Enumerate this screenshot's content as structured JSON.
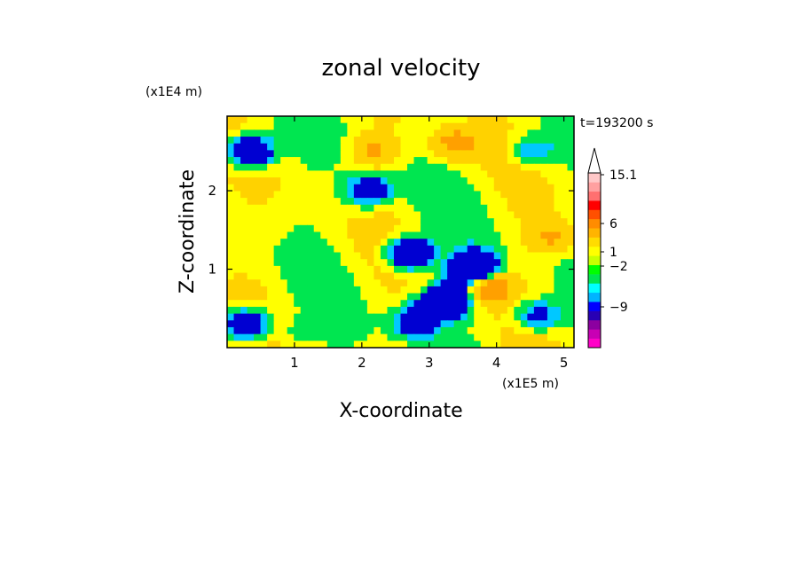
{
  "chart_data": {
    "type": "heatmap",
    "title": "zonal velocity",
    "xlabel": "X-coordinate",
    "ylabel": "Z-coordinate",
    "x_unit_label": "(x1E5 m)",
    "y_unit_label": "(x1E4 m)",
    "time_label": "t=193200 s",
    "xlim": [
      0,
      5.15
    ],
    "ylim": [
      0,
      2.95
    ],
    "x_ticks": [
      1,
      2,
      3,
      4,
      5
    ],
    "x_tick_labels": [
      "1",
      "2",
      "3",
      "4",
      "5"
    ],
    "y_ticks": [
      1,
      2
    ],
    "y_tick_labels": [
      "1",
      "2"
    ],
    "colorbar": {
      "labeled_levels": [
        15.1,
        6,
        1,
        -2,
        -9
      ],
      "labels": [
        "15.1",
        "6",
        "1",
        "−2",
        "−9"
      ],
      "extend": "max",
      "segment_colors": [
        "#ff00c8",
        "#c800b4",
        "#8c00a0",
        "#2800b4",
        "#0000ff",
        "#00b4ff",
        "#00ffff",
        "#00e650",
        "#00ff00",
        "#c8ff00",
        "#ffff00",
        "#ffdc00",
        "#ffb400",
        "#ff8c00",
        "#ff5000",
        "#ff0000",
        "#ff7070",
        "#ffa0a0",
        "#ffc8c8"
      ]
    },
    "field_levels": [
      -9,
      -2,
      -1,
      0,
      1,
      3,
      6
    ],
    "field_colors": [
      "#0000d2",
      "#00c8ff",
      "#00e650",
      "#ffff00",
      "#ffd200",
      "#ffa000",
      "#ff4600"
    ],
    "features": [
      {
        "x": 0.35,
        "z": 2.5,
        "value": -7
      },
      {
        "x": 2.1,
        "z": 2.0,
        "value": -5
      },
      {
        "x": 2.2,
        "z": 2.5,
        "value": 3
      },
      {
        "x": 1.0,
        "z": 0.2,
        "value": -1
      },
      {
        "x": 2.8,
        "z": 0.35,
        "value": -5
      },
      {
        "x": 3.25,
        "z": 0.6,
        "value": -8
      },
      {
        "x": 2.7,
        "z": 1.2,
        "value": -7
      },
      {
        "x": 3.7,
        "z": 1.0,
        "value": -9
      },
      {
        "x": 3.9,
        "z": 0.8,
        "value": 6
      },
      {
        "x": 4.6,
        "z": 0.4,
        "value": -4
      },
      {
        "x": 4.8,
        "z": 1.4,
        "value": 3
      },
      {
        "x": 4.5,
        "z": 2.5,
        "value": -3
      },
      {
        "x": 3.4,
        "z": 2.6,
        "value": 4
      },
      {
        "x": 0.3,
        "z": 0.3,
        "value": -6
      }
    ]
  }
}
